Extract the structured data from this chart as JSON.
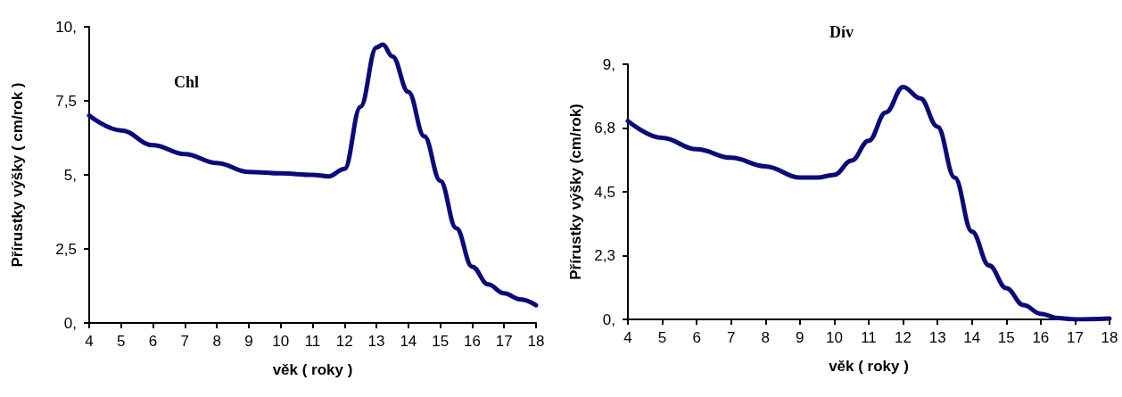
{
  "chart_data": [
    {
      "type": "line",
      "title": "Chl",
      "xlabel": "věk ( roky )",
      "ylabel": "Přírustky výšky ( cm/rok )",
      "grid": false,
      "marker": "none",
      "line_style": "solid",
      "xlim": [
        4,
        18
      ],
      "xticks": [
        4,
        5,
        6,
        7,
        8,
        9,
        10,
        11,
        12,
        13,
        14,
        15,
        16,
        17,
        18
      ],
      "ylim": [
        0,
        10
      ],
      "yticks": [
        {
          "value": 0,
          "label": "0,"
        },
        {
          "value": 2.5,
          "label": "2,5"
        },
        {
          "value": 5,
          "label": "5,"
        },
        {
          "value": 7.5,
          "label": "7,5"
        },
        {
          "value": 10,
          "label": "10,"
        }
      ],
      "series": [
        {
          "color": "#0a0a7a",
          "x": [
            4,
            5,
            6,
            7,
            8,
            9,
            10,
            11,
            11.5,
            12,
            12.5,
            13,
            13.2,
            13.5,
            14,
            14.5,
            15,
            15.5,
            16,
            16.5,
            17,
            17.5,
            18
          ],
          "values": [
            7.0,
            6.5,
            6.0,
            5.7,
            5.4,
            5.1,
            5.05,
            5.0,
            4.95,
            5.2,
            7.3,
            9.3,
            9.4,
            9.0,
            7.8,
            6.3,
            4.8,
            3.2,
            1.9,
            1.3,
            1.0,
            0.8,
            0.6
          ]
        }
      ]
    },
    {
      "type": "line",
      "title": "Dív",
      "xlabel": "věk ( roky )",
      "ylabel": "Přírustky výšky (cm/rok)",
      "grid": false,
      "marker": "none",
      "line_style": "solid",
      "xlim": [
        4,
        18
      ],
      "xticks": [
        4,
        5,
        6,
        7,
        8,
        9,
        10,
        11,
        12,
        13,
        14,
        15,
        16,
        17,
        18
      ],
      "ylim": [
        0,
        9
      ],
      "yticks": [
        {
          "value": 0,
          "label": "0,"
        },
        {
          "value": 2.25,
          "label": "2,3"
        },
        {
          "value": 4.5,
          "label": "4,5"
        },
        {
          "value": 6.75,
          "label": "6,8"
        },
        {
          "value": 9,
          "label": "9,"
        }
      ],
      "series": [
        {
          "color": "#0a0a7a",
          "x": [
            4,
            5,
            6,
            7,
            8,
            9,
            9.5,
            10,
            10.5,
            11,
            11.5,
            12,
            12.5,
            13,
            13.5,
            14,
            14.5,
            15,
            15.5,
            16,
            16.5,
            17,
            18
          ],
          "values": [
            7.0,
            6.4,
            6.0,
            5.7,
            5.4,
            5.0,
            5.0,
            5.1,
            5.6,
            6.3,
            7.3,
            8.2,
            7.8,
            6.8,
            5.0,
            3.1,
            1.9,
            1.1,
            0.5,
            0.2,
            0.05,
            0,
            0.03
          ]
        }
      ]
    }
  ]
}
